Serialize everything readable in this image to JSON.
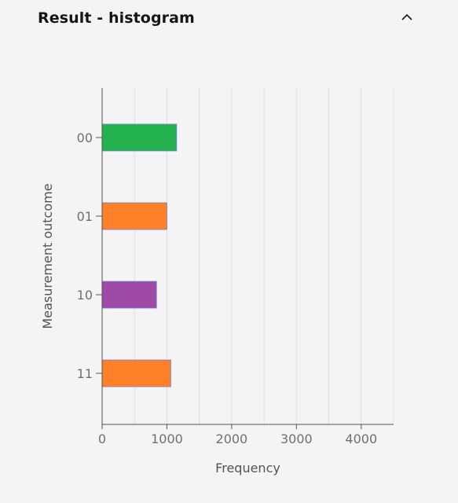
{
  "panel": {
    "title": "Result - histogram",
    "toggle_icon": "chevron-up-icon"
  },
  "chart_data": {
    "type": "bar",
    "orientation": "horizontal",
    "title": "",
    "xlabel": "Frequency",
    "ylabel": "Measurement outcome",
    "categories": [
      "00",
      "01",
      "10",
      "11"
    ],
    "values": [
      1150,
      1000,
      840,
      1060
    ],
    "colors": [
      "#24b24e",
      "#fe8028",
      "#a04aa8",
      "#fe8028"
    ],
    "xlim": [
      0,
      4500
    ],
    "xticks": [
      0,
      1000,
      2000,
      3000,
      4000
    ],
    "grid": true
  }
}
